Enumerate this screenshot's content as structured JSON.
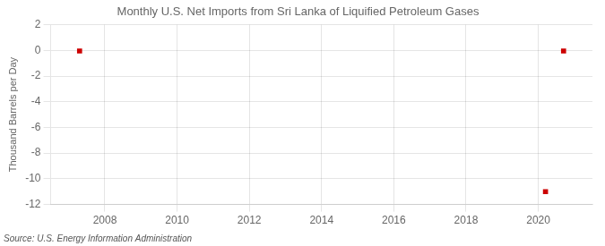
{
  "chart_data": {
    "type": "scatter",
    "title": "Monthly U.S. Net Imports from Sri Lanka of Liquified Petroleum Gases",
    "ylabel": "Thousand Barrels per Day",
    "annotation": "Source: U.S. Energy Information Administration",
    "x": [
      2007.3,
      2020.7,
      2020.2
    ],
    "values": [
      -0.05,
      -0.05,
      -11.0
    ],
    "color": "#cc0000",
    "marker": "square",
    "xlim": [
      2006.5,
      2021.5
    ],
    "xticks": [
      2008,
      2010,
      2012,
      2014,
      2016,
      2018,
      2020
    ],
    "ylim": [
      -12,
      2
    ],
    "yticks": [
      2,
      0,
      -2,
      -4,
      -6,
      -8,
      -10,
      -12
    ],
    "grid": true
  }
}
